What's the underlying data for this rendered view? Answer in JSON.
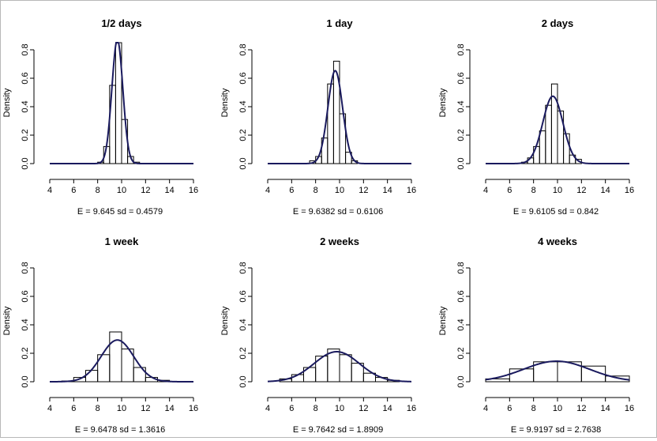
{
  "figure": {
    "panel_count": 6,
    "layout": "2 rows x 3 columns"
  },
  "curve_color": "#1a1a5e",
  "chart_data": [
    {
      "type": "bar",
      "subtype": "histogram with fitted normal density curve",
      "title": "1/2 days",
      "ylabel": "Density",
      "xlabel": "",
      "xlim": [
        4,
        16
      ],
      "ylim": [
        0,
        0.85
      ],
      "xticks": [
        "4",
        "6",
        "8",
        "10",
        "12",
        "14",
        "16"
      ],
      "yticks": [
        "0.0",
        "0.2",
        "0.4",
        "0.6",
        "0.8"
      ],
      "bin_width": 0.5,
      "bins": [
        {
          "x0": 8.0,
          "x1": 8.5,
          "density": 0.01
        },
        {
          "x0": 8.5,
          "x1": 9.0,
          "density": 0.12
        },
        {
          "x0": 9.0,
          "x1": 9.5,
          "density": 0.55
        },
        {
          "x0": 9.5,
          "x1": 10.0,
          "density": 0.85
        },
        {
          "x0": 10.0,
          "x1": 10.5,
          "density": 0.31
        },
        {
          "x0": 10.5,
          "x1": 11.0,
          "density": 0.05
        },
        {
          "x0": 11.0,
          "x1": 11.5,
          "density": 0.01
        }
      ],
      "curve": {
        "mean": 9.645,
        "sd": 0.4579
      },
      "summary": "E =  9.645   sd =  0.4579"
    },
    {
      "type": "bar",
      "subtype": "histogram with fitted normal density curve",
      "title": "1 day",
      "ylabel": "Density",
      "xlabel": "",
      "xlim": [
        4,
        16
      ],
      "ylim": [
        0,
        0.85
      ],
      "xticks": [
        "4",
        "6",
        "8",
        "10",
        "12",
        "14",
        "16"
      ],
      "yticks": [
        "0.0",
        "0.2",
        "0.4",
        "0.6",
        "0.8"
      ],
      "bin_width": 0.5,
      "bins": [
        {
          "x0": 7.5,
          "x1": 8.0,
          "density": 0.02
        },
        {
          "x0": 8.0,
          "x1": 8.5,
          "density": 0.05
        },
        {
          "x0": 8.5,
          "x1": 9.0,
          "density": 0.18
        },
        {
          "x0": 9.0,
          "x1": 9.5,
          "density": 0.56
        },
        {
          "x0": 9.5,
          "x1": 10.0,
          "density": 0.72
        },
        {
          "x0": 10.0,
          "x1": 10.5,
          "density": 0.35
        },
        {
          "x0": 10.5,
          "x1": 11.0,
          "density": 0.08
        },
        {
          "x0": 11.0,
          "x1": 11.5,
          "density": 0.02
        }
      ],
      "curve": {
        "mean": 9.6382,
        "sd": 0.6106
      },
      "summary": "E =  9.6382   sd =  0.6106"
    },
    {
      "type": "bar",
      "subtype": "histogram with fitted normal density curve",
      "title": "2 days",
      "ylabel": "Density",
      "xlabel": "",
      "xlim": [
        4,
        16
      ],
      "ylim": [
        0,
        0.85
      ],
      "xticks": [
        "4",
        "6",
        "8",
        "10",
        "12",
        "14",
        "16"
      ],
      "yticks": [
        "0.0",
        "0.2",
        "0.4",
        "0.6",
        "0.8"
      ],
      "bin_width": 0.5,
      "bins": [
        {
          "x0": 7.0,
          "x1": 7.5,
          "density": 0.01
        },
        {
          "x0": 7.5,
          "x1": 8.0,
          "density": 0.04
        },
        {
          "x0": 8.0,
          "x1": 8.5,
          "density": 0.12
        },
        {
          "x0": 8.5,
          "x1": 9.0,
          "density": 0.23
        },
        {
          "x0": 9.0,
          "x1": 9.5,
          "density": 0.41
        },
        {
          "x0": 9.5,
          "x1": 10.0,
          "density": 0.56
        },
        {
          "x0": 10.0,
          "x1": 10.5,
          "density": 0.37
        },
        {
          "x0": 10.5,
          "x1": 11.0,
          "density": 0.21
        },
        {
          "x0": 11.0,
          "x1": 11.5,
          "density": 0.06
        },
        {
          "x0": 11.5,
          "x1": 12.0,
          "density": 0.03
        }
      ],
      "curve": {
        "mean": 9.6105,
        "sd": 0.842
      },
      "summary": "E =  9.6105   sd =  0.842"
    },
    {
      "type": "bar",
      "subtype": "histogram with fitted normal density curve",
      "title": "1 week",
      "ylabel": "Density",
      "xlabel": "",
      "xlim": [
        4,
        16
      ],
      "ylim": [
        0,
        0.85
      ],
      "xticks": [
        "4",
        "6",
        "8",
        "10",
        "12",
        "14",
        "16"
      ],
      "yticks": [
        "0.0",
        "0.2",
        "0.4",
        "0.6",
        "0.8"
      ],
      "bin_width": 1,
      "bins": [
        {
          "x0": 5,
          "x1": 6,
          "density": 0.005
        },
        {
          "x0": 6,
          "x1": 7,
          "density": 0.03
        },
        {
          "x0": 7,
          "x1": 8,
          "density": 0.08
        },
        {
          "x0": 8,
          "x1": 9,
          "density": 0.19
        },
        {
          "x0": 9,
          "x1": 10,
          "density": 0.35
        },
        {
          "x0": 10,
          "x1": 11,
          "density": 0.23
        },
        {
          "x0": 11,
          "x1": 12,
          "density": 0.1
        },
        {
          "x0": 12,
          "x1": 13,
          "density": 0.03
        },
        {
          "x0": 13,
          "x1": 14,
          "density": 0.01
        }
      ],
      "curve": {
        "mean": 9.6478,
        "sd": 1.3616
      },
      "summary": "E =  9.6478   sd =  1.3616"
    },
    {
      "type": "bar",
      "subtype": "histogram with fitted normal density curve",
      "title": "2 weeks",
      "ylabel": "Density",
      "xlabel": "",
      "xlim": [
        4,
        16
      ],
      "ylim": [
        0,
        0.85
      ],
      "xticks": [
        "4",
        "6",
        "8",
        "10",
        "12",
        "14",
        "16"
      ],
      "yticks": [
        "0.0",
        "0.2",
        "0.4",
        "0.6",
        "0.8"
      ],
      "bin_width": 1,
      "bins": [
        {
          "x0": 5,
          "x1": 6,
          "density": 0.02
        },
        {
          "x0": 6,
          "x1": 7,
          "density": 0.05
        },
        {
          "x0": 7,
          "x1": 8,
          "density": 0.1
        },
        {
          "x0": 8,
          "x1": 9,
          "density": 0.18
        },
        {
          "x0": 9,
          "x1": 10,
          "density": 0.23
        },
        {
          "x0": 10,
          "x1": 11,
          "density": 0.19
        },
        {
          "x0": 11,
          "x1": 12,
          "density": 0.13
        },
        {
          "x0": 12,
          "x1": 13,
          "density": 0.06
        },
        {
          "x0": 13,
          "x1": 14,
          "density": 0.03
        },
        {
          "x0": 14,
          "x1": 15,
          "density": 0.01
        }
      ],
      "curve": {
        "mean": 9.7642,
        "sd": 1.8909
      },
      "summary": "E =  9.7642   sd =  1.8909"
    },
    {
      "type": "bar",
      "subtype": "histogram with fitted normal density curve",
      "title": "4 weeks",
      "ylabel": "Density",
      "xlabel": "",
      "xlim": [
        4,
        16
      ],
      "ylim": [
        0,
        0.85
      ],
      "xticks": [
        "4",
        "6",
        "8",
        "10",
        "12",
        "14",
        "16"
      ],
      "yticks": [
        "0.0",
        "0.2",
        "0.4",
        "0.6",
        "0.8"
      ],
      "bin_width": 2,
      "bins": [
        {
          "x0": 4,
          "x1": 6,
          "density": 0.02
        },
        {
          "x0": 6,
          "x1": 8,
          "density": 0.09
        },
        {
          "x0": 8,
          "x1": 10,
          "density": 0.14
        },
        {
          "x0": 10,
          "x1": 12,
          "density": 0.14
        },
        {
          "x0": 12,
          "x1": 14,
          "density": 0.11
        },
        {
          "x0": 14,
          "x1": 16,
          "density": 0.04
        }
      ],
      "curve": {
        "mean": 9.9197,
        "sd": 2.7638
      },
      "summary": "E =  9.9197   sd =  2.7638"
    }
  ]
}
